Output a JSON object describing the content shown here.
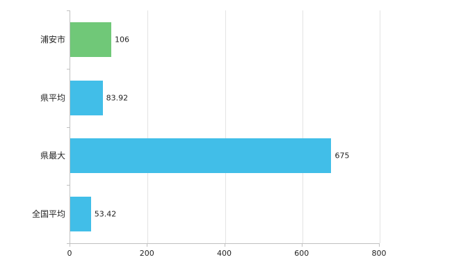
{
  "chart_data": {
    "type": "bar",
    "orientation": "horizontal",
    "title": "",
    "xlabel": "",
    "ylabel": "",
    "categories": [
      "浦安市",
      "県平均",
      "県最大",
      "全国平均"
    ],
    "values": [
      106,
      83.92,
      675,
      53.42
    ],
    "value_labels": [
      "106",
      "83.92",
      "675",
      "53.42"
    ],
    "bar_colors": [
      "#70c878",
      "#41bee8",
      "#41bee8",
      "#41bee8"
    ],
    "xlim": [
      0,
      800
    ],
    "xticks": [
      0,
      200,
      400,
      600,
      800
    ],
    "grid": true,
    "legend": "none"
  },
  "colors": {
    "grid": "#e3e3e3",
    "axis": "#c0c0c0",
    "text": "#222222",
    "background": "#ffffff"
  }
}
